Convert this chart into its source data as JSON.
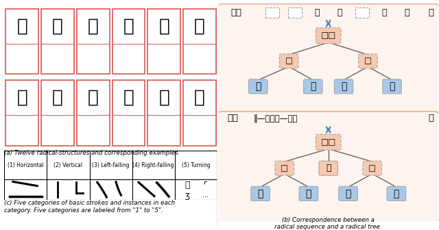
{
  "chars_row1": [
    "泉",
    "曼",
    "和",
    "斋",
    "国",
    "斤"
  ],
  "chars_row2": [
    "局",
    "辽",
    "句",
    "区",
    "函",
    "同"
  ],
  "stroke_categories": [
    "(1) Horizontal",
    "(2) Vertical",
    "(3) Left-falling",
    "(4) Right-falling",
    "(5) Turning"
  ],
  "caption_a": "(a) Twelve radical-structures and corresponding examples.",
  "caption_b": "(b) Correspondence between a\nradical sequence and a radical tree.",
  "caption_c": "(c) Five categories of basic strokes and instances in each\ncategory. Five categories are labeled from \"1\" to \"5\".",
  "tree1_header_char": "路",
  "tree1_seq": [
    "□",
    "□",
    "口",
    "止",
    "□",
    "久",
    "口"
  ],
  "tree1_l2_left": "□",
  "tree1_l2_right": "□",
  "tree1_leaves": [
    "口",
    "止",
    "久",
    "口"
  ],
  "tree2_header_char": "辞",
  "tree2_seq_text": "‖—立十瓜—立十",
  "tree2_l2_nodes": [
    "□",
    "瓜",
    "□"
  ],
  "tree2_leaves": [
    "立",
    "十",
    "立",
    "十"
  ],
  "salmon_color": "#f8c8b0",
  "blue_color": "#a8c8e8",
  "red_border": "#e06060",
  "tree_outer_edge": "#e8a888",
  "tree_outer_face": "#fef4ef",
  "arrow_color": "#4488cc",
  "node_edge_color": "#aaaaaa"
}
